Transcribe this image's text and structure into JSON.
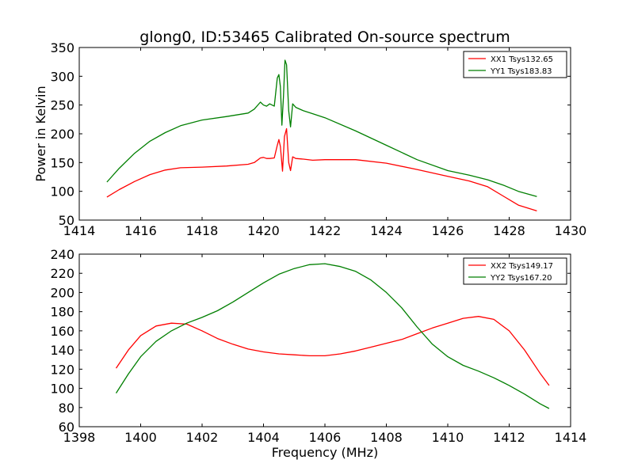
{
  "colors": {
    "xx": "#ff0000",
    "yy": "#007f00",
    "axis": "#000000",
    "background": "#ffffff"
  },
  "chart_data": [
    {
      "type": "line",
      "title": "glong0, ID:53465 Calibrated On-source spectrum",
      "xlabel": "",
      "ylabel": "Power in Kelvin",
      "xlim": [
        1414,
        1430
      ],
      "ylim": [
        50,
        350
      ],
      "xticks": [
        "1414",
        "1416",
        "1418",
        "1420",
        "1422",
        "1424",
        "1426",
        "1428",
        "1430"
      ],
      "yticks": [
        "50",
        "100",
        "150",
        "200",
        "250",
        "300",
        "350"
      ],
      "legend_position": "top-right",
      "grid": false,
      "series": [
        {
          "name": "XX1 Tsys132.65",
          "color": "#ff0000",
          "x": [
            1414.9,
            1415.3,
            1415.8,
            1416.3,
            1416.8,
            1417.3,
            1418.0,
            1418.8,
            1419.5,
            1419.7,
            1419.9,
            1420.0,
            1420.1,
            1420.2,
            1420.35,
            1420.45,
            1420.5,
            1420.55,
            1420.62,
            1420.68,
            1420.75,
            1420.82,
            1420.88,
            1420.95,
            1421.05,
            1421.3,
            1421.6,
            1422.0,
            1423.0,
            1424.0,
            1425.0,
            1426.0,
            1426.7,
            1427.3,
            1427.8,
            1428.3,
            1428.9
          ],
          "values": [
            90,
            103,
            117,
            129,
            137,
            141,
            142,
            144,
            147,
            150,
            158,
            159,
            157,
            157,
            158,
            180,
            190,
            178,
            135,
            195,
            209,
            150,
            136,
            160,
            157,
            156,
            154,
            155,
            155,
            149,
            138,
            126,
            118,
            108,
            92,
            76,
            66
          ]
        },
        {
          "name": "YY1 Tsys183.83",
          "color": "#007f00",
          "x": [
            1414.9,
            1415.3,
            1415.8,
            1416.3,
            1416.8,
            1417.3,
            1418.0,
            1418.8,
            1419.5,
            1419.7,
            1419.9,
            1420.0,
            1420.1,
            1420.2,
            1420.35,
            1420.45,
            1420.5,
            1420.55,
            1420.6,
            1420.65,
            1420.7,
            1420.75,
            1420.82,
            1420.88,
            1420.95,
            1421.05,
            1421.3,
            1421.6,
            1422.0,
            1423.0,
            1424.0,
            1425.0,
            1426.0,
            1426.7,
            1427.3,
            1427.8,
            1428.3,
            1428.9
          ],
          "values": [
            116,
            140,
            166,
            187,
            202,
            214,
            224,
            230,
            236,
            243,
            255,
            250,
            248,
            252,
            248,
            297,
            303,
            282,
            215,
            265,
            328,
            320,
            240,
            212,
            252,
            246,
            240,
            235,
            228,
            205,
            180,
            155,
            136,
            128,
            120,
            111,
            100,
            91
          ]
        }
      ]
    },
    {
      "type": "line",
      "title": "",
      "xlabel": "Frequency (MHz)",
      "ylabel": "",
      "xlim": [
        1398,
        1414
      ],
      "ylim": [
        60,
        240
      ],
      "xticks": [
        "1398",
        "1400",
        "1402",
        "1404",
        "1406",
        "1408",
        "1410",
        "1412",
        "1414"
      ],
      "yticks": [
        "60",
        "80",
        "100",
        "120",
        "140",
        "160",
        "180",
        "200",
        "220",
        "240"
      ],
      "legend_position": "top-right",
      "grid": false,
      "series": [
        {
          "name": "XX2 Tsys149.17",
          "color": "#ff0000",
          "x": [
            1399.2,
            1399.6,
            1400.0,
            1400.5,
            1401.0,
            1401.5,
            1402.0,
            1402.5,
            1403.0,
            1403.5,
            1404.0,
            1404.5,
            1405.0,
            1405.5,
            1406.0,
            1406.5,
            1407.0,
            1407.5,
            1408.0,
            1408.5,
            1409.0,
            1409.5,
            1410.0,
            1410.5,
            1411.0,
            1411.5,
            1412.0,
            1412.5,
            1413.0,
            1413.3
          ],
          "values": [
            121,
            140,
            155,
            165,
            168,
            167,
            160,
            152,
            146,
            141,
            138,
            136,
            135,
            134,
            134,
            136,
            139,
            143,
            147,
            151,
            157,
            163,
            168,
            173,
            175,
            172,
            160,
            140,
            116,
            103
          ]
        },
        {
          "name": "YY2 Tsys167.20",
          "color": "#007f00",
          "x": [
            1399.2,
            1399.6,
            1400.0,
            1400.5,
            1401.0,
            1401.5,
            1402.0,
            1402.5,
            1403.0,
            1403.5,
            1404.0,
            1404.5,
            1405.0,
            1405.5,
            1406.0,
            1406.5,
            1407.0,
            1407.5,
            1408.0,
            1408.5,
            1409.0,
            1409.5,
            1410.0,
            1410.5,
            1411.0,
            1411.5,
            1412.0,
            1412.5,
            1413.0,
            1413.3
          ],
          "values": [
            95,
            115,
            133,
            149,
            160,
            168,
            174,
            181,
            190,
            200,
            210,
            219,
            225,
            229,
            230,
            227,
            222,
            213,
            200,
            184,
            164,
            146,
            133,
            124,
            118,
            111,
            103,
            94,
            84,
            79
          ]
        }
      ]
    }
  ]
}
